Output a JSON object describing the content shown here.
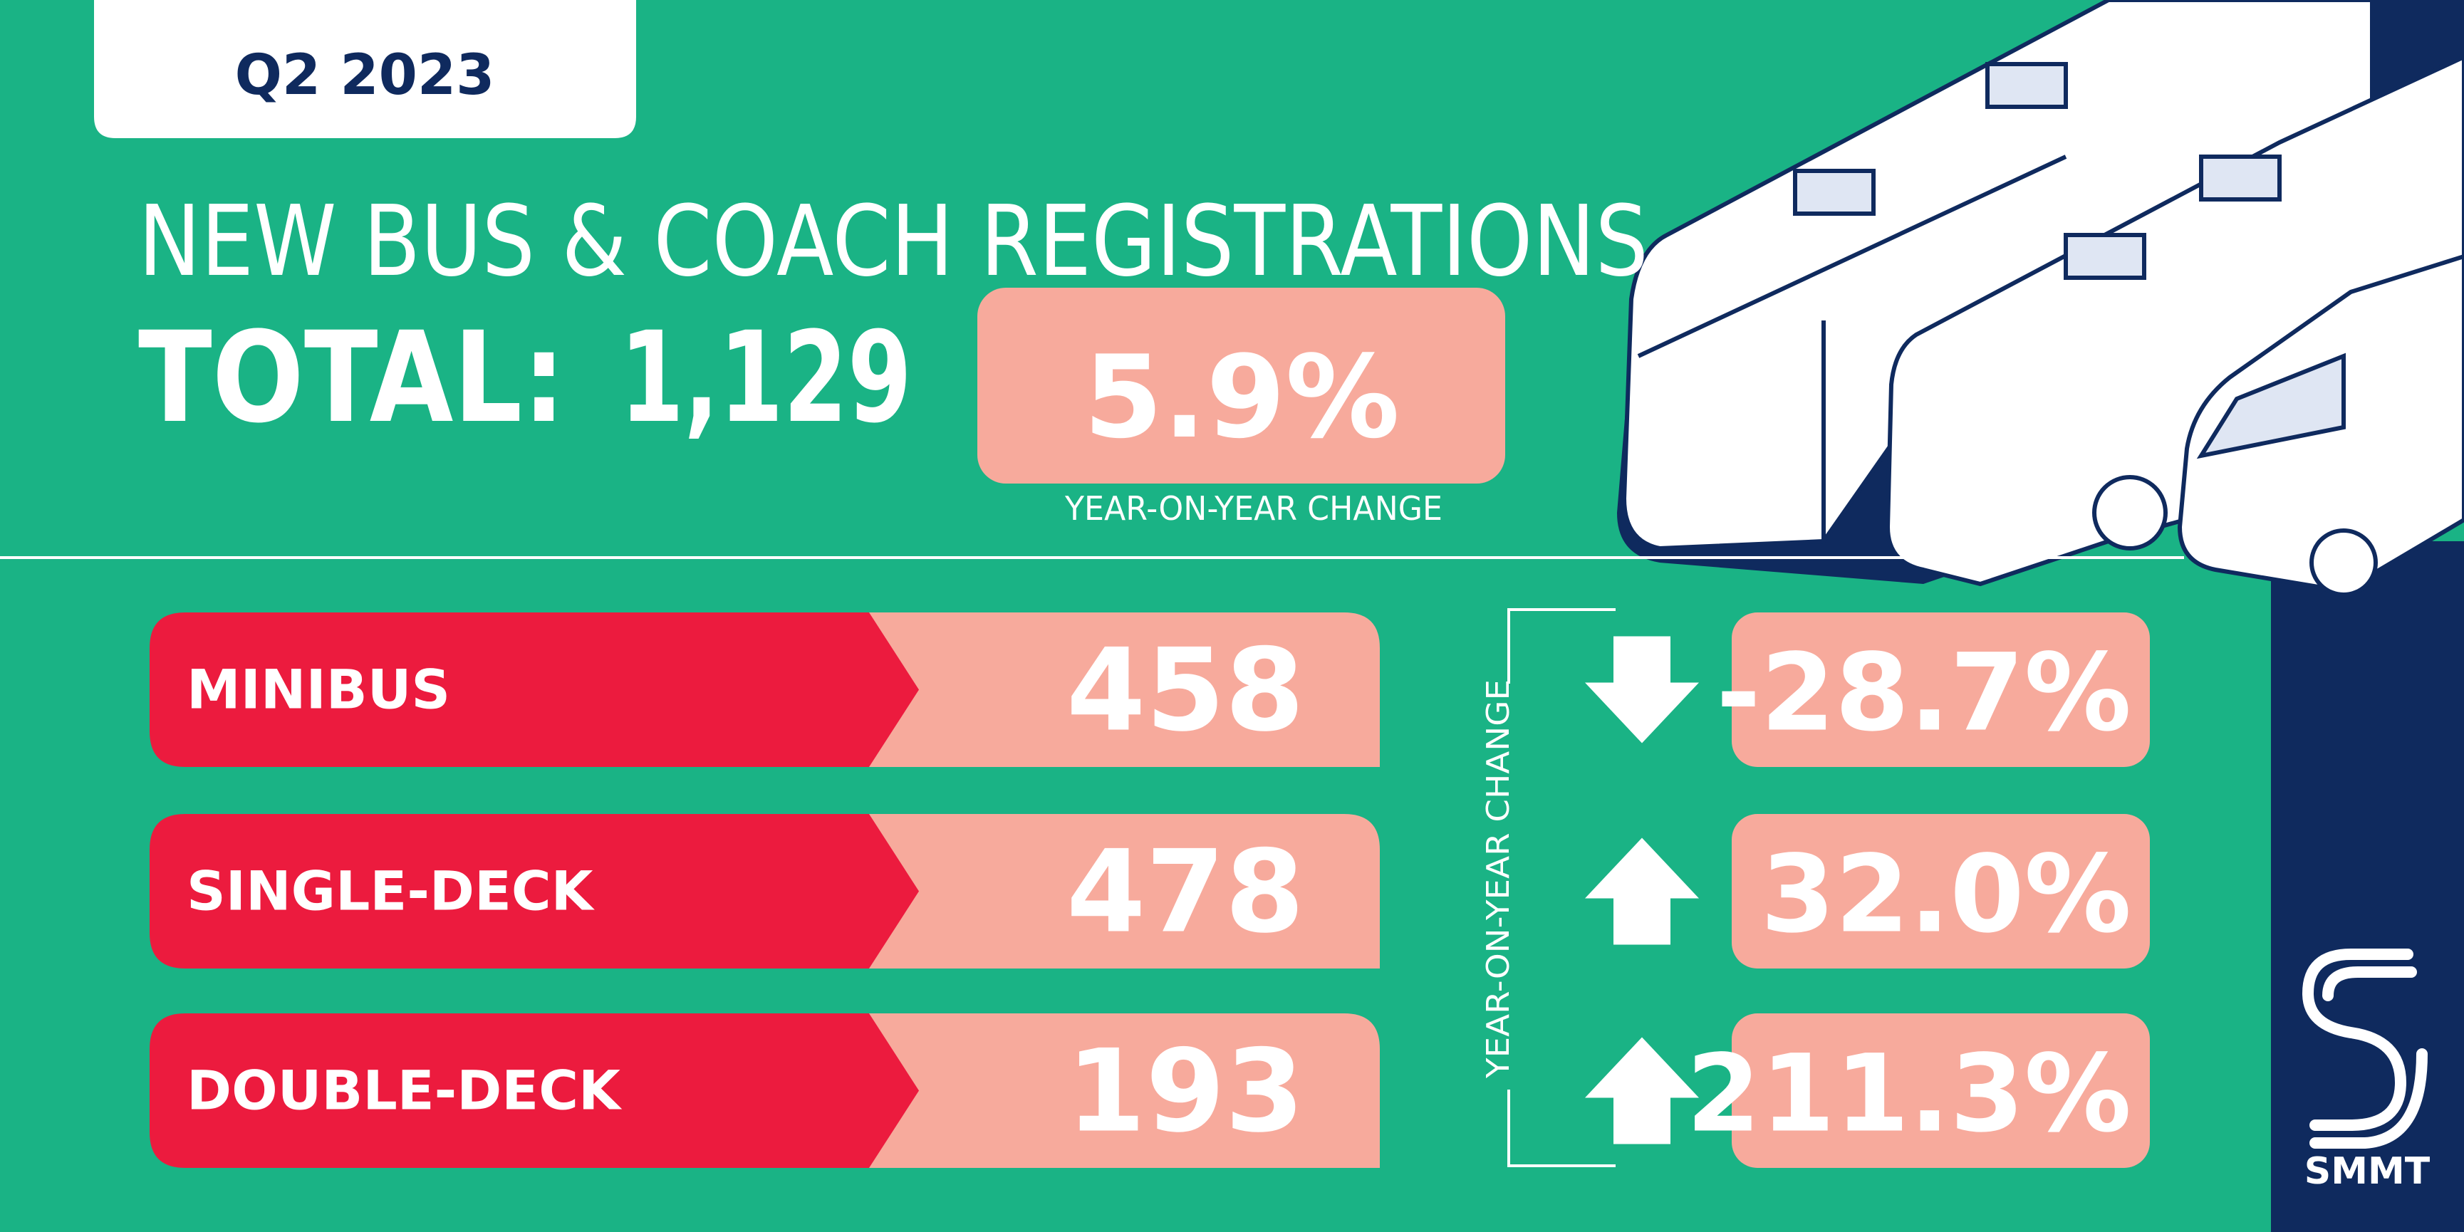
{
  "header": {
    "period": "Q2 2023",
    "title": "NEW BUS & COACH REGISTRATIONS"
  },
  "total": {
    "label": "TOTAL:",
    "value": "1,129",
    "change": "5.9%",
    "change_caption": "YEAR-ON-YEAR CHANGE"
  },
  "rows": [
    {
      "name": "MINIBUS",
      "value": "458",
      "change": "-28.7%",
      "direction": "down"
    },
    {
      "name": "SINGLE-DECK",
      "value": "478",
      "change": "32.0%",
      "direction": "up"
    },
    {
      "name": "DOUBLE-DECK",
      "value": "193",
      "change": "211.3%",
      "direction": "up"
    }
  ],
  "side_label": "YEAR-ON-YEAR CHANGE",
  "logo": "SMMT"
}
